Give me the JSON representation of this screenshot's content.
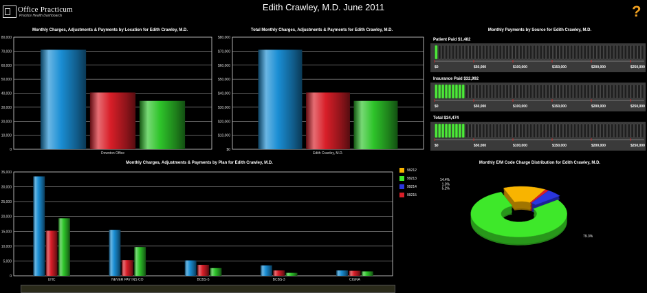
{
  "header": {
    "title": "Edith Crawley, M.D. June 2011",
    "logo_name": "Office Practicum",
    "logo_tagline": "Practice Health Dashboards"
  },
  "help_icon": "question-mark-icon",
  "colors": {
    "charges": "#1a8ed4",
    "adjustments": "#d81e28",
    "payments": "#2ec42a"
  },
  "chart_data": [
    {
      "type": "bar",
      "title": "Monthly Charges, Adjustments & Payments by Location for Edith Crawley, M.D.",
      "categories": [
        "Downton Office"
      ],
      "ylim": [
        0,
        80000
      ],
      "yticks": [
        "0",
        "10,000",
        "20,000",
        "30,000",
        "40,000",
        "50,000",
        "60,000",
        "70,000",
        "80,000"
      ],
      "series": [
        {
          "values": [
            71000
          ]
        },
        {
          "values": [
            40500
          ]
        },
        {
          "values": [
            34500
          ]
        }
      ]
    },
    {
      "type": "bar",
      "title": "Total Monthly Charges, Adjustments & Payments for Edith Crawley, M.D.",
      "categories": [
        "Edith Crawley, M.D."
      ],
      "ylim": [
        0,
        80000
      ],
      "yticks": [
        "$0",
        "$10,000",
        "$20,000",
        "$30,000",
        "$40,000",
        "$50,000",
        "$60,000",
        "$70,000",
        "$80,000"
      ],
      "series": [
        {
          "values": [
            71000
          ]
        },
        {
          "values": [
            40500
          ]
        },
        {
          "values": [
            34500
          ]
        }
      ]
    },
    {
      "type": "bar",
      "title": "Monthly Charges, Adjustments & Payments by Plan for Edith Crawley, M.D.",
      "categories": [
        "UHC",
        "NEVER PAY INS CO",
        "BCBS-5",
        "BCBS-3",
        "CIGNA"
      ],
      "ylim": [
        0,
        35000
      ],
      "yticks": [
        "0",
        "5,000",
        "10,000",
        "15,000",
        "20,000",
        "25,000",
        "30,000",
        "35,000"
      ],
      "series": [
        {
          "values": [
            33500,
            15500,
            5200,
            3500,
            1800
          ]
        },
        {
          "values": [
            15200,
            5300,
            3700,
            1800,
            1700
          ]
        },
        {
          "values": [
            19400,
            9700,
            2600,
            1000,
            1500
          ]
        }
      ]
    },
    {
      "type": "pie",
      "title": "Monthly E/M Code Charge Distribution for Edith Crawley, M.D.",
      "slices": [
        {
          "label": "99212",
          "value": 14.4,
          "display": "14.4%",
          "color": "#f8b400"
        },
        {
          "label": "99215",
          "value": 1.3,
          "display": "1.3%",
          "color": "#d81e28"
        },
        {
          "label": "99214",
          "value": 5.2,
          "display": "5.2%",
          "color": "#2a36e0"
        },
        {
          "label": "99213",
          "value": 79.3,
          "display": "79.3%",
          "color": "#3ee82a"
        }
      ]
    }
  ],
  "legend": [
    {
      "label": "99212",
      "color": "#f8b400"
    },
    {
      "label": "99213",
      "color": "#3ee82a"
    },
    {
      "label": "99214",
      "color": "#2a36e0"
    },
    {
      "label": "99215",
      "color": "#d81e28"
    }
  ],
  "payments": {
    "title": "Monthly Payments by Source for Edith Crawley, M.D.",
    "max": 250000,
    "ticks": [
      "$0",
      "$50,000",
      "$100,000",
      "$150,000",
      "$200,000",
      "$250,000"
    ],
    "gauges": [
      {
        "label": "Patient Paid",
        "amount": "$1,482",
        "value": 1482
      },
      {
        "label": "Insurance Paid",
        "amount": "$32,992",
        "value": 32992
      },
      {
        "label": "Total",
        "amount": "$34,474",
        "value": 34474
      }
    ]
  }
}
